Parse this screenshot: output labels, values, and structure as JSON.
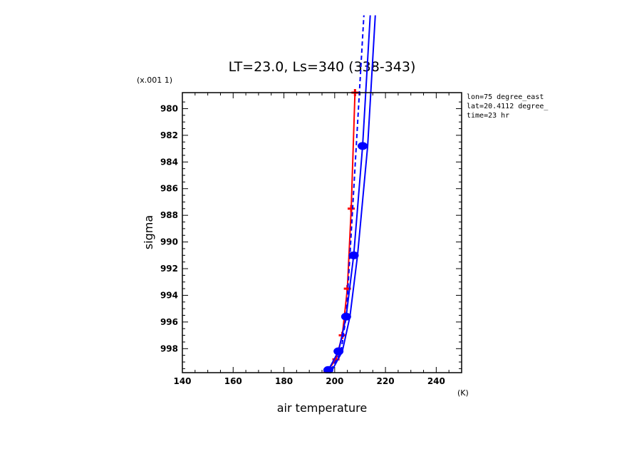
{
  "chart_data": {
    "type": "line",
    "title": "LT=23.0, Ls=340 (338-343)",
    "xlabel": "air temperature",
    "xunit": "(K)",
    "ylabel": "sigma",
    "yunit": "(x.001 1)",
    "xlim": [
      140,
      250
    ],
    "ylim": [
      999.8,
      978.8
    ],
    "x_ticks": [
      140,
      160,
      180,
      200,
      220,
      240
    ],
    "y_ticks": [
      980,
      982,
      984,
      986,
      988,
      990,
      992,
      994,
      996,
      998
    ],
    "annotations": [
      "lon=75 degree_east",
      "lat=20.4112 degree_",
      "time=23 hr"
    ],
    "series": [
      {
        "color": "#ff0000",
        "style": "solid",
        "marker": "cross",
        "points": [
          {
            "x": 197.0,
            "y": 999.7
          },
          {
            "x": 200.5,
            "y": 998.8
          },
          {
            "x": 203.0,
            "y": 997.0
          },
          {
            "x": 205.0,
            "y": 993.5
          },
          {
            "x": 206.5,
            "y": 987.5
          },
          {
            "x": 208.0,
            "y": 978.8
          }
        ]
      },
      {
        "color": "#0000ff",
        "style": "solid",
        "marker": "circle",
        "points": [
          {
            "x": 197.5,
            "y": 999.6
          },
          {
            "x": 201.5,
            "y": 998.2
          },
          {
            "x": 204.5,
            "y": 995.6
          },
          {
            "x": 207.5,
            "y": 991.0
          },
          {
            "x": 211.0,
            "y": 982.8
          },
          {
            "x": 214.0,
            "y": 973.0
          }
        ]
      },
      {
        "color": "#0000ff",
        "style": "dashed",
        "marker": "none",
        "points": [
          {
            "x": 198.5,
            "y": 999.6
          },
          {
            "x": 202.5,
            "y": 998.2
          },
          {
            "x": 204.5,
            "y": 995.6
          },
          {
            "x": 206.0,
            "y": 991.0
          },
          {
            "x": 208.5,
            "y": 982.8
          },
          {
            "x": 211.5,
            "y": 973.0
          }
        ]
      },
      {
        "color": "#0000ff",
        "style": "solid",
        "marker": "none",
        "points": [
          {
            "x": 199.0,
            "y": 999.6
          },
          {
            "x": 203.0,
            "y": 998.2
          },
          {
            "x": 206.0,
            "y": 995.6
          },
          {
            "x": 209.0,
            "y": 991.0
          },
          {
            "x": 213.0,
            "y": 982.8
          },
          {
            "x": 216.0,
            "y": 973.0
          }
        ]
      }
    ]
  }
}
